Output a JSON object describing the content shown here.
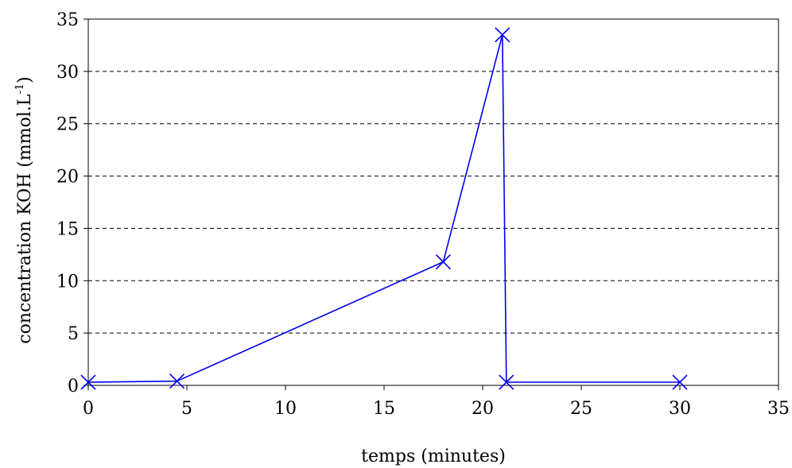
{
  "chart_data": {
    "type": "line",
    "title": "",
    "xlabel": "temps (minutes)",
    "ylabel": {
      "main": "concentration KOH (mmol.L",
      "superscript": "-1",
      "suffix": ")"
    },
    "xlim": [
      0,
      35
    ],
    "ylim": [
      0,
      35
    ],
    "xticks": [
      0,
      5,
      10,
      15,
      20,
      25,
      30,
      35
    ],
    "yticks": [
      0,
      5,
      10,
      15,
      20,
      25,
      30,
      35
    ],
    "grid": "horizontal dashed",
    "legend": "none",
    "series": [
      {
        "marker": "x",
        "color": "#0000ee",
        "points": [
          {
            "x": 0,
            "y": 0.3
          },
          {
            "x": 4.5,
            "y": 0.4
          },
          {
            "x": 18,
            "y": 11.8
          },
          {
            "x": 21,
            "y": 33.5
          },
          {
            "x": 21.2,
            "y": 0.3
          },
          {
            "x": 30,
            "y": 0.3
          }
        ]
      }
    ]
  }
}
